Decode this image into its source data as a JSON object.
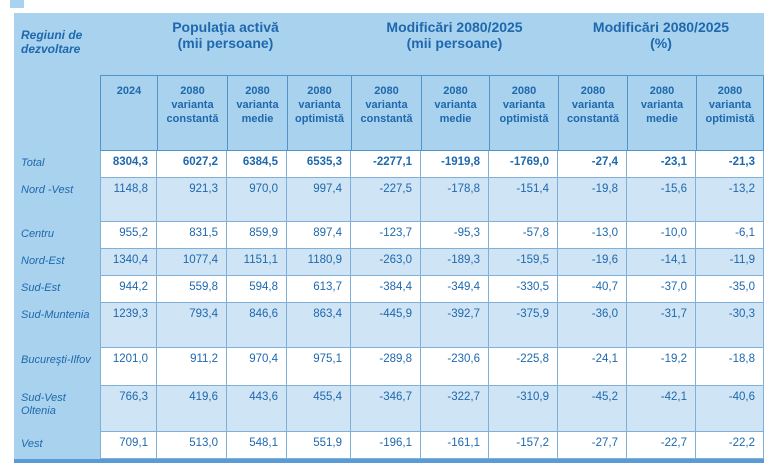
{
  "colors": {
    "header-blue": "#a9d2ee",
    "row-alt-blue": "#cfe4f5",
    "border-strong": "#4f94cb",
    "border-light": "#7fb0da",
    "text-blue": "#1e68ad",
    "bottom-bar": "#5b9bd5"
  },
  "table": {
    "region_column_header": "Regiuni de dezvoltare",
    "groups": [
      {
        "title": "Populaţia activă\n(mii persoane)"
      },
      {
        "title": "Modificări 2080/2025\n(mii persoane)"
      },
      {
        "title": "Modificări 2080/2025\n(%)"
      }
    ],
    "subheaders": [
      "2024",
      "2080 varianta constantă",
      "2080 varianta medie",
      "2080 varianta optimistă",
      "2080 varianta constantă",
      "2080 varianta medie",
      "2080 varianta optimistă",
      "2080 varianta constantă",
      "2080 varianta medie",
      "2080 varianta optimistă"
    ],
    "rows": [
      {
        "region": "Total",
        "bold": true,
        "values": [
          "8304,3",
          "6027,2",
          "6384,5",
          "6535,3",
          "-2277,1",
          "-1919,8",
          "-1769,0",
          "-27,4",
          "-23,1",
          "-21,3"
        ]
      },
      {
        "region": "Nord -Vest",
        "bold": false,
        "values": [
          "1148,8",
          "921,3",
          "970,0",
          "997,4",
          "-227,5",
          "-178,8",
          "-151,4",
          "-19,8",
          "-15,6",
          "-13,2"
        ]
      },
      {
        "region": "Centru",
        "bold": false,
        "values": [
          "955,2",
          "831,5",
          "859,9",
          "897,4",
          "-123,7",
          "-95,3",
          "-57,8",
          "-13,0",
          "-10,0",
          "-6,1"
        ]
      },
      {
        "region": "Nord-Est",
        "bold": false,
        "values": [
          "1340,4",
          "1077,4",
          "1151,1",
          "1180,9",
          "-263,0",
          "-189,3",
          "-159,5",
          "-19,6",
          "-14,1",
          "-11,9"
        ]
      },
      {
        "region": "Sud-Est",
        "bold": false,
        "values": [
          "944,2",
          "559,8",
          "594,8",
          "613,7",
          "-384,4",
          "-349,4",
          "-330,5",
          "-40,7",
          "-37,0",
          "-35,0"
        ]
      },
      {
        "region": "Sud-Muntenia",
        "bold": false,
        "values": [
          "1239,3",
          "793,4",
          "846,6",
          "863,4",
          "-445,9",
          "-392,7",
          "-375,9",
          "-36,0",
          "-31,7",
          "-30,3"
        ]
      },
      {
        "region": "Bucureşti-Ilfov",
        "bold": false,
        "values": [
          "1201,0",
          "911,2",
          "970,4",
          "975,1",
          "-289,8",
          "-230,6",
          "-225,8",
          "-24,1",
          "-19,2",
          "-18,8"
        ]
      },
      {
        "region": "Sud-Vest Oltenia",
        "bold": false,
        "values": [
          "766,3",
          "419,6",
          "443,6",
          "455,4",
          "-346,7",
          "-322,7",
          "-310,9",
          "-45,2",
          "-42,1",
          "-40,6"
        ]
      },
      {
        "region": "Vest",
        "bold": false,
        "values": [
          "709,1",
          "513,0",
          "548,1",
          "551,9",
          "-196,1",
          "-161,1",
          "-157,2",
          "-27,7",
          "-22,7",
          "-22,2"
        ]
      }
    ]
  }
}
